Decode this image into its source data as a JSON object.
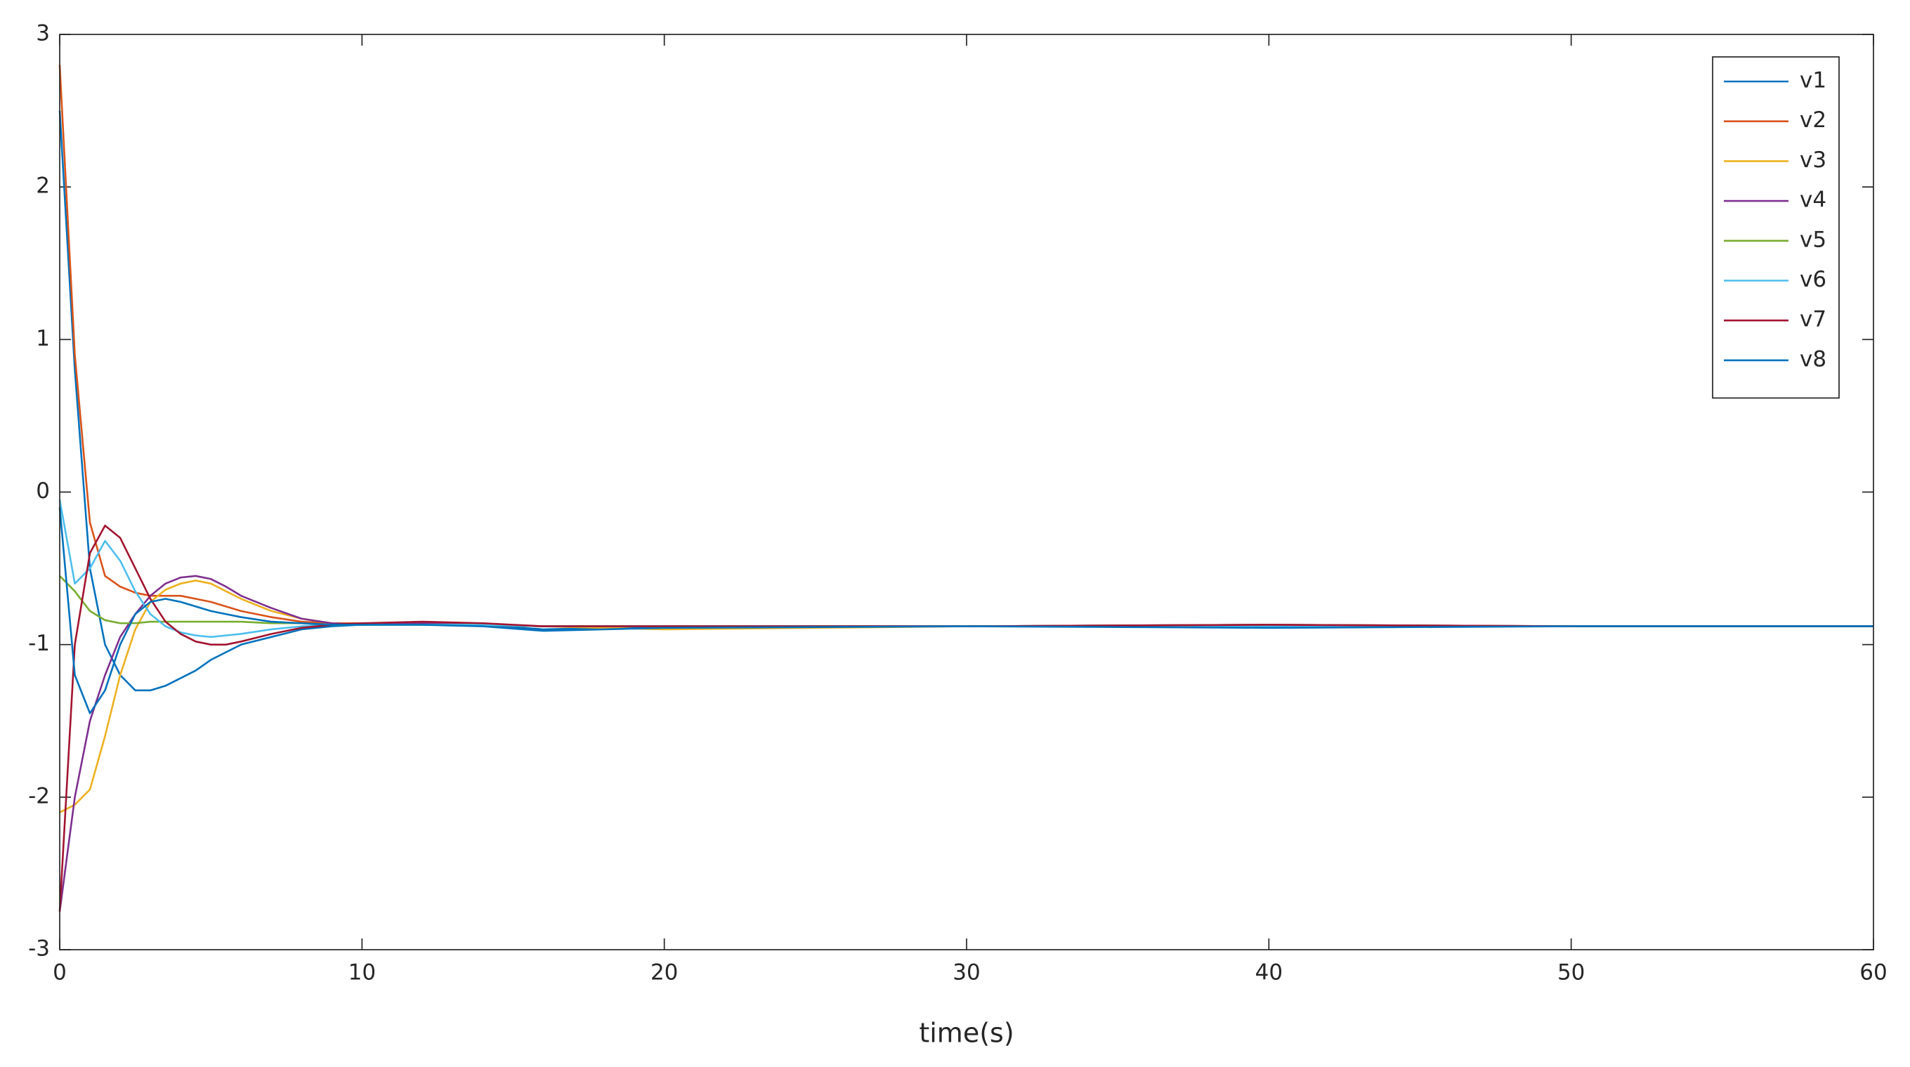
{
  "chart_data": {
    "type": "line",
    "xlabel": "time(s)",
    "x": [
      0,
      0.5,
      1,
      1.5,
      2,
      2.5,
      3,
      3.5,
      4,
      4.5,
      5,
      5.5,
      6,
      7,
      8,
      9,
      10,
      12,
      14,
      16,
      20,
      30,
      40,
      50,
      60
    ],
    "series": [
      {
        "name": "v1",
        "color": "#0072bd",
        "values": [
          2.5,
          0.8,
          -0.5,
          -1.0,
          -1.2,
          -1.3,
          -1.3,
          -1.27,
          -1.22,
          -1.17,
          -1.1,
          -1.05,
          -1.0,
          -0.95,
          -0.9,
          -0.88,
          -0.87,
          -0.86,
          -0.87,
          -0.9,
          -0.88,
          -0.88,
          -0.87,
          -0.88,
          -0.88
        ]
      },
      {
        "name": "v2",
        "color": "#d95319",
        "values": [
          2.8,
          0.9,
          -0.2,
          -0.55,
          -0.62,
          -0.66,
          -0.68,
          -0.68,
          -0.68,
          -0.7,
          -0.72,
          -0.75,
          -0.78,
          -0.82,
          -0.85,
          -0.86,
          -0.86,
          -0.86,
          -0.87,
          -0.88,
          -0.88,
          -0.88,
          -0.87,
          -0.88,
          -0.88
        ]
      },
      {
        "name": "v3",
        "color": "#edb120",
        "values": [
          -2.1,
          -2.05,
          -1.95,
          -1.6,
          -1.2,
          -0.9,
          -0.72,
          -0.64,
          -0.6,
          -0.58,
          -0.6,
          -0.65,
          -0.7,
          -0.78,
          -0.83,
          -0.86,
          -0.87,
          -0.87,
          -0.87,
          -0.88,
          -0.9,
          -0.88,
          -0.88,
          -0.88,
          -0.88
        ]
      },
      {
        "name": "v4",
        "color": "#7e2f8e",
        "values": [
          -2.75,
          -2.0,
          -1.5,
          -1.2,
          -0.95,
          -0.8,
          -0.68,
          -0.6,
          -0.56,
          -0.55,
          -0.57,
          -0.62,
          -0.68,
          -0.76,
          -0.83,
          -0.86,
          -0.87,
          -0.86,
          -0.87,
          -0.88,
          -0.88,
          -0.88,
          -0.88,
          -0.88,
          -0.88
        ]
      },
      {
        "name": "v5",
        "color": "#77ac30",
        "values": [
          -0.55,
          -0.65,
          -0.78,
          -0.84,
          -0.86,
          -0.86,
          -0.85,
          -0.85,
          -0.85,
          -0.85,
          -0.85,
          -0.85,
          -0.85,
          -0.86,
          -0.86,
          -0.87,
          -0.87,
          -0.87,
          -0.87,
          -0.88,
          -0.88,
          -0.88,
          -0.88,
          -0.88,
          -0.88
        ]
      },
      {
        "name": "v6",
        "color": "#4dbeee",
        "values": [
          -0.05,
          -0.6,
          -0.5,
          -0.32,
          -0.45,
          -0.65,
          -0.8,
          -0.88,
          -0.92,
          -0.94,
          -0.95,
          -0.94,
          -0.93,
          -0.9,
          -0.88,
          -0.87,
          -0.87,
          -0.87,
          -0.87,
          -0.88,
          -0.88,
          -0.88,
          -0.88,
          -0.88,
          -0.88
        ]
      },
      {
        "name": "v7",
        "color": "#a2142f",
        "values": [
          -2.75,
          -1.0,
          -0.4,
          -0.22,
          -0.3,
          -0.5,
          -0.7,
          -0.85,
          -0.93,
          -0.98,
          -1.0,
          -1.0,
          -0.98,
          -0.93,
          -0.89,
          -0.87,
          -0.86,
          -0.85,
          -0.86,
          -0.88,
          -0.88,
          -0.88,
          -0.87,
          -0.88,
          -0.88
        ]
      },
      {
        "name": "v8",
        "color": "#0072bd",
        "values": [
          -0.1,
          -1.2,
          -1.45,
          -1.3,
          -1.0,
          -0.8,
          -0.72,
          -0.7,
          -0.72,
          -0.75,
          -0.78,
          -0.8,
          -0.82,
          -0.85,
          -0.86,
          -0.87,
          -0.87,
          -0.87,
          -0.88,
          -0.91,
          -0.89,
          -0.88,
          -0.89,
          -0.88,
          -0.88
        ]
      }
    ],
    "xlim": [
      0,
      60
    ],
    "xticks": [
      0,
      10,
      20,
      30,
      40,
      50,
      60
    ],
    "ylim": [
      -3,
      3
    ],
    "yticks": [
      -3,
      -2,
      -1,
      0,
      1,
      2,
      3
    ],
    "grid": false,
    "legend": "northeast"
  }
}
